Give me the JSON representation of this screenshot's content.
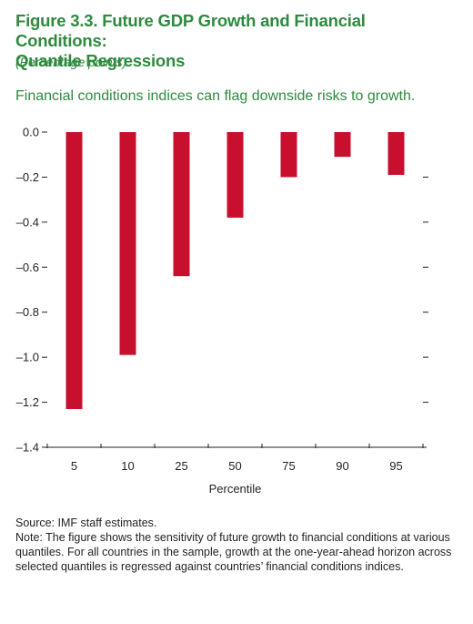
{
  "figure": {
    "title_line1": "Figure 3.3. Future GDP Growth and Financial Conditions:",
    "title_line2": "Quantile Regressions",
    "subtitle": "(Percentage points)",
    "lead": "Financial conditions indices can flag downside risks to growth."
  },
  "colors": {
    "title": "#2e8a3e",
    "bar": "#c8102e",
    "axis": "#231f20"
  },
  "chart_data": {
    "type": "bar",
    "categories": [
      "5",
      "10",
      "25",
      "50",
      "75",
      "90",
      "95"
    ],
    "values": [
      -1.23,
      -0.99,
      -0.64,
      -0.38,
      -0.2,
      -0.11,
      -0.19
    ],
    "xlabel": "Percentile",
    "ylabel": "",
    "ylim": [
      -1.4,
      0.0
    ],
    "yticks": [
      "0.0",
      "–0.2",
      "–0.4",
      "–0.6",
      "–0.8",
      "–1.0",
      "–1.2",
      "–1.4"
    ],
    "grid": false,
    "legend": "none"
  },
  "notes": {
    "source": "Source: IMF staff estimates.",
    "note": "Note: The figure shows the sensitivity of future growth to financial conditions at various quantiles. For all countries in the sample, growth at the one-year-ahead horizon across selected quantiles is regressed against countries’ financial conditions indices."
  }
}
